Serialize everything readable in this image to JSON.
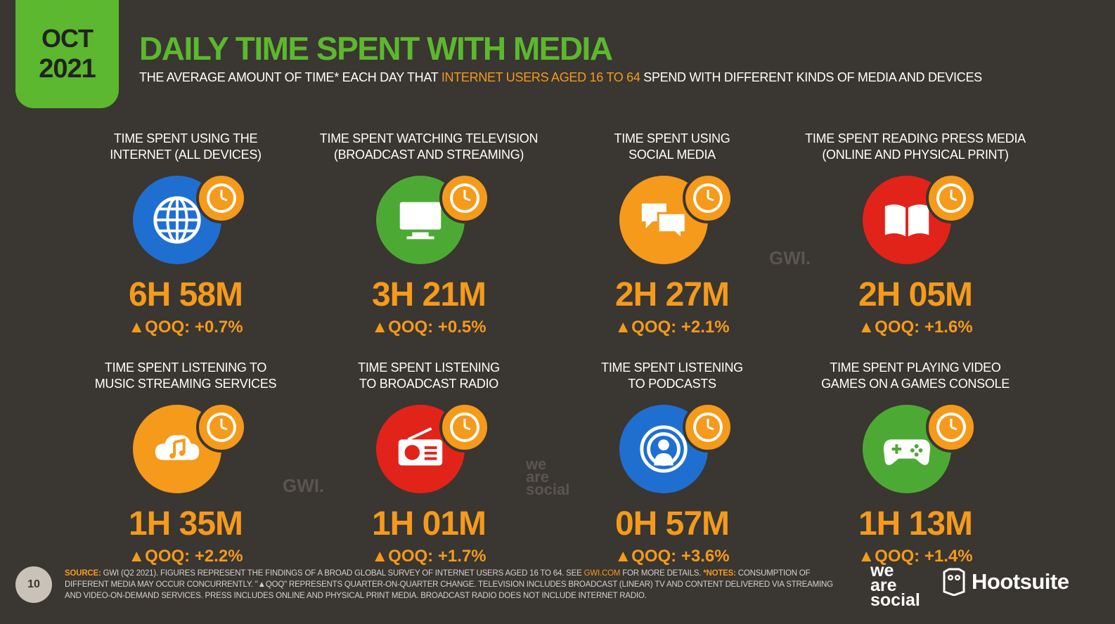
{
  "header": {
    "month": "OCT",
    "year": "2021",
    "title": "DAILY TIME SPENT WITH MEDIA",
    "subtitle_pre": "THE AVERAGE AMOUNT OF TIME* EACH DAY THAT ",
    "subtitle_highlight": "INTERNET USERS AGED 16 TO 64",
    "subtitle_post": " SPEND WITH DIFFERENT KINDS OF MEDIA AND DEVICES"
  },
  "metrics": [
    {
      "line1": "TIME SPENT USING THE",
      "line2": "INTERNET (ALL DEVICES)",
      "value": "6H 58M",
      "change": "▲QOQ: +0.7%",
      "color": "#1f6fd1",
      "icon": "globe-icon"
    },
    {
      "line1": "TIME SPENT WATCHING TELEVISION",
      "line2": "(BROADCAST AND STREAMING)",
      "value": "3H 21M",
      "change": "▲QOQ: +0.5%",
      "color": "#4caa34",
      "icon": "television-icon"
    },
    {
      "line1": "TIME SPENT USING",
      "line2": "SOCIAL MEDIA",
      "value": "2H 27M",
      "change": "▲QOQ: +2.1%",
      "color": "#f59a1b",
      "icon": "chat-bubbles-icon"
    },
    {
      "line1": "TIME SPENT READING PRESS MEDIA",
      "line2": "(ONLINE AND PHYSICAL PRINT)",
      "value": "2H 05M",
      "change": "▲QOQ: +1.6%",
      "color": "#e2231a",
      "icon": "open-book-icon"
    },
    {
      "line1": "TIME SPENT LISTENING TO",
      "line2": "MUSIC STREAMING SERVICES",
      "value": "1H 35M",
      "change": "▲QOQ: +2.2%",
      "color": "#f59a1b",
      "icon": "music-cloud-icon"
    },
    {
      "line1": "TIME SPENT LISTENING",
      "line2": "TO BROADCAST RADIO",
      "value": "1H 01M",
      "change": "▲QOQ: +1.7%",
      "color": "#e2231a",
      "icon": "radio-icon"
    },
    {
      "line1": "TIME SPENT LISTENING",
      "line2": "TO PODCASTS",
      "value": "0H 57M",
      "change": "▲QOQ: +3.6%",
      "color": "#1f6fd1",
      "icon": "podcast-icon"
    },
    {
      "line1": "TIME SPENT PLAYING VIDEO",
      "line2": "GAMES ON A GAMES CONSOLE",
      "value": "1H 13M",
      "change": "▲QOQ: +1.4%",
      "color": "#4caa34",
      "icon": "gamepad-icon"
    }
  ],
  "watermarks": {
    "gwi": "GWI.",
    "was1": "we",
    "was2": "are",
    "was3": "social"
  },
  "footer": {
    "page": "10",
    "source_key": "SOURCE:",
    "source_a": " GWI (Q2 2021). FIGURES REPRESENT THE FINDINGS OF A BROAD GLOBAL SURVEY OF INTERNET USERS AGED 16 TO 64. SEE ",
    "source_link": "GWI.COM",
    "source_b": " FOR MORE DETAILS. ",
    "notes_key": "*NOTES:",
    "notes": " CONSUMPTION OF DIFFERENT MEDIA MAY OCCUR CONCURRENTLY. \"▲QOQ\" REPRESENTS QUARTER-ON-QUARTER CHANGE. TELEVISION INCLUDES BROADCAST (LINEAR) TV AND CONTENT DELIVERED VIA STREAMING AND VIDEO-ON-DEMAND SERVICES. PRESS INCLUDES ONLINE AND PHYSICAL PRINT MEDIA. BROADCAST RADIO DOES NOT INCLUDE INTERNET RADIO.",
    "brand1_a": "we",
    "brand1_b": "are",
    "brand1_c": "social",
    "brand2": "Hootsuite"
  }
}
